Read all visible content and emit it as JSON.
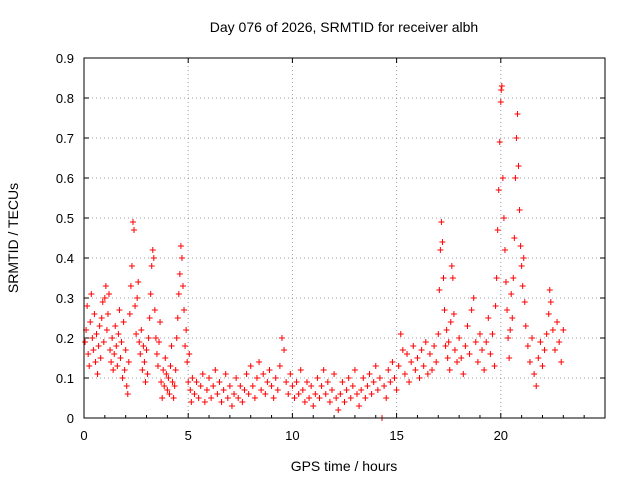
{
  "chart_data": {
    "type": "scatter",
    "title": "Day 076 of 2026, SRMTID for receiver albh",
    "xlabel": "GPS time / hours",
    "ylabel": "SRMTID / TECUs",
    "xlim": [
      0,
      25
    ],
    "ylim": [
      0,
      0.9
    ],
    "xticks": [
      0,
      5,
      10,
      15,
      20
    ],
    "yticks": [
      0,
      0.1,
      0.2,
      0.3,
      0.4,
      0.5,
      0.6,
      0.7,
      0.8,
      0.9
    ],
    "xtick_labels": [
      "0",
      "5",
      "10",
      "15",
      "20"
    ],
    "ytick_labels": [
      "0",
      "0.1",
      "0.2",
      "0.3",
      "0.4",
      "0.5",
      "0.6",
      "0.7",
      "0.8",
      "0.9"
    ],
    "grid": true,
    "marker": "+",
    "color": "#ff0000",
    "series": [
      {
        "name": "SRMTID",
        "points": [
          [
            0.05,
            0.19
          ],
          [
            0.1,
            0.22
          ],
          [
            0.15,
            0.28
          ],
          [
            0.2,
            0.16
          ],
          [
            0.25,
            0.13
          ],
          [
            0.3,
            0.24
          ],
          [
            0.35,
            0.31
          ],
          [
            0.4,
            0.2
          ],
          [
            0.45,
            0.17
          ],
          [
            0.5,
            0.26
          ],
          [
            0.55,
            0.14
          ],
          [
            0.6,
            0.21
          ],
          [
            0.65,
            0.11
          ],
          [
            0.7,
            0.18
          ],
          [
            0.75,
            0.23
          ],
          [
            0.8,
            0.15
          ],
          [
            0.85,
            0.25
          ],
          [
            0.9,
            0.29
          ],
          [
            0.95,
            0.19
          ],
          [
            1.0,
            0.3
          ],
          [
            1.05,
            0.33
          ],
          [
            1.1,
            0.22
          ],
          [
            1.15,
            0.26
          ],
          [
            1.2,
            0.31
          ],
          [
            1.25,
            0.17
          ],
          [
            1.3,
            0.14
          ],
          [
            1.35,
            0.2
          ],
          [
            1.4,
            0.12
          ],
          [
            1.45,
            0.16
          ],
          [
            1.5,
            0.23
          ],
          [
            1.55,
            0.18
          ],
          [
            1.6,
            0.13
          ],
          [
            1.65,
            0.21
          ],
          [
            1.7,
            0.27
          ],
          [
            1.75,
            0.15
          ],
          [
            1.8,
            0.19
          ],
          [
            1.85,
            0.1
          ],
          [
            1.9,
            0.24
          ],
          [
            1.95,
            0.12
          ],
          [
            2.0,
            0.17
          ],
          [
            2.05,
            0.08
          ],
          [
            2.1,
            0.06
          ],
          [
            2.15,
            0.14
          ],
          [
            2.2,
            0.26
          ],
          [
            2.25,
            0.33
          ],
          [
            2.3,
            0.38
          ],
          [
            2.35,
            0.49
          ],
          [
            2.4,
            0.47
          ],
          [
            2.45,
            0.28
          ],
          [
            2.5,
            0.21
          ],
          [
            2.55,
            0.3
          ],
          [
            2.6,
            0.34
          ],
          [
            2.65,
            0.19
          ],
          [
            2.7,
            0.16
          ],
          [
            2.75,
            0.22
          ],
          [
            2.8,
            0.12
          ],
          [
            2.85,
            0.18
          ],
          [
            2.9,
            0.14
          ],
          [
            2.95,
            0.09
          ],
          [
            3.0,
            0.17
          ],
          [
            3.05,
            0.11
          ],
          [
            3.1,
            0.2
          ],
          [
            3.15,
            0.25
          ],
          [
            3.2,
            0.31
          ],
          [
            3.25,
            0.38
          ],
          [
            3.3,
            0.42
          ],
          [
            3.35,
            0.4
          ],
          [
            3.4,
            0.27
          ],
          [
            3.45,
            0.2
          ],
          [
            3.5,
            0.16
          ],
          [
            3.55,
            0.13
          ],
          [
            3.6,
            0.19
          ],
          [
            3.65,
            0.24
          ],
          [
            3.7,
            0.09
          ],
          [
            3.75,
            0.05
          ],
          [
            3.8,
            0.12
          ],
          [
            3.85,
            0.08
          ],
          [
            3.9,
            0.15
          ],
          [
            3.95,
            0.11
          ],
          [
            4.0,
            0.07
          ],
          [
            4.05,
            0.1
          ],
          [
            4.1,
            0.06
          ],
          [
            4.15,
            0.13
          ],
          [
            4.2,
            0.18
          ],
          [
            4.25,
            0.09
          ],
          [
            4.3,
            0.05
          ],
          [
            4.35,
            0.08
          ],
          [
            4.4,
            0.12
          ],
          [
            4.45,
            0.2
          ],
          [
            4.5,
            0.25
          ],
          [
            4.55,
            0.31
          ],
          [
            4.6,
            0.36
          ],
          [
            4.65,
            0.43
          ],
          [
            4.7,
            0.4
          ],
          [
            4.75,
            0.33
          ],
          [
            4.8,
            0.27
          ],
          [
            4.85,
            0.18
          ],
          [
            4.9,
            0.22
          ],
          [
            4.95,
            0.14
          ],
          [
            5.0,
            0.09
          ],
          [
            5.05,
            0.16
          ],
          [
            5.1,
            0.07
          ],
          [
            5.15,
            0.04
          ],
          [
            5.2,
            0.1
          ],
          [
            5.3,
            0.06
          ],
          [
            5.4,
            0.09
          ],
          [
            5.5,
            0.05
          ],
          [
            5.6,
            0.08
          ],
          [
            5.7,
            0.11
          ],
          [
            5.8,
            0.04
          ],
          [
            5.9,
            0.07
          ],
          [
            6.0,
            0.1
          ],
          [
            6.1,
            0.05
          ],
          [
            6.2,
            0.08
          ],
          [
            6.3,
            0.12
          ],
          [
            6.4,
            0.06
          ],
          [
            6.5,
            0.09
          ],
          [
            6.6,
            0.04
          ],
          [
            6.7,
            0.07
          ],
          [
            6.8,
            0.11
          ],
          [
            6.9,
            0.05
          ],
          [
            7.0,
            0.08
          ],
          [
            7.1,
            0.03
          ],
          [
            7.2,
            0.06
          ],
          [
            7.3,
            0.1
          ],
          [
            7.4,
            0.05
          ],
          [
            7.5,
            0.08
          ],
          [
            7.6,
            0.04
          ],
          [
            7.7,
            0.07
          ],
          [
            7.8,
            0.11
          ],
          [
            7.9,
            0.06
          ],
          [
            8.0,
            0.13
          ],
          [
            8.1,
            0.08
          ],
          [
            8.2,
            0.05
          ],
          [
            8.3,
            0.1
          ],
          [
            8.4,
            0.14
          ],
          [
            8.5,
            0.07
          ],
          [
            8.6,
            0.11
          ],
          [
            8.7,
            0.06
          ],
          [
            8.8,
            0.09
          ],
          [
            8.9,
            0.12
          ],
          [
            9.0,
            0.08
          ],
          [
            9.1,
            0.05
          ],
          [
            9.2,
            0.1
          ],
          [
            9.3,
            0.07
          ],
          [
            9.4,
            0.13
          ],
          [
            9.5,
            0.2
          ],
          [
            9.6,
            0.17
          ],
          [
            9.7,
            0.09
          ],
          [
            9.8,
            0.06
          ],
          [
            9.9,
            0.11
          ],
          [
            10.0,
            0.08
          ],
          [
            10.1,
            0.05
          ],
          [
            10.2,
            0.09
          ],
          [
            10.3,
            0.06
          ],
          [
            10.4,
            0.12
          ],
          [
            10.5,
            0.07
          ],
          [
            10.6,
            0.04
          ],
          [
            10.7,
            0.09
          ],
          [
            10.8,
            0.05
          ],
          [
            10.9,
            0.08
          ],
          [
            11.0,
            0.03
          ],
          [
            11.1,
            0.06
          ],
          [
            11.2,
            0.1
          ],
          [
            11.3,
            0.05
          ],
          [
            11.4,
            0.08
          ],
          [
            11.5,
            0.12
          ],
          [
            11.6,
            0.06
          ],
          [
            11.7,
            0.09
          ],
          [
            11.8,
            0.04
          ],
          [
            11.9,
            0.07
          ],
          [
            12.0,
            0.11
          ],
          [
            12.1,
            0.05
          ],
          [
            12.2,
            0.02
          ],
          [
            12.3,
            0.06
          ],
          [
            12.4,
            0.09
          ],
          [
            12.5,
            0.04
          ],
          [
            12.6,
            0.07
          ],
          [
            12.7,
            0.1
          ],
          [
            12.8,
            0.05
          ],
          [
            12.9,
            0.08
          ],
          [
            13.0,
            0.12
          ],
          [
            13.1,
            0.06
          ],
          [
            13.2,
            0.03
          ],
          [
            13.3,
            0.07
          ],
          [
            13.4,
            0.1
          ],
          [
            13.5,
            0.05
          ],
          [
            13.6,
            0.08
          ],
          [
            13.7,
            0.11
          ],
          [
            13.8,
            0.06
          ],
          [
            13.9,
            0.09
          ],
          [
            14.0,
            0.13
          ],
          [
            14.1,
            0.07
          ],
          [
            14.2,
            0.1
          ],
          [
            14.3,
            0.0
          ],
          [
            14.4,
            0.08
          ],
          [
            14.5,
            0.05
          ],
          [
            14.6,
            0.12
          ],
          [
            14.7,
            0.09
          ],
          [
            14.8,
            0.14
          ],
          [
            14.9,
            0.1
          ],
          [
            15.0,
            0.07
          ],
          [
            15.1,
            0.13
          ],
          [
            15.2,
            0.21
          ],
          [
            15.3,
            0.17
          ],
          [
            15.4,
            0.11
          ],
          [
            15.5,
            0.16
          ],
          [
            15.6,
            0.09
          ],
          [
            15.7,
            0.14
          ],
          [
            15.8,
            0.18
          ],
          [
            15.9,
            0.12
          ],
          [
            16.0,
            0.15
          ],
          [
            16.1,
            0.1
          ],
          [
            16.2,
            0.17
          ],
          [
            16.3,
            0.13
          ],
          [
            16.4,
            0.19
          ],
          [
            16.5,
            0.11
          ],
          [
            16.6,
            0.16
          ],
          [
            16.7,
            0.12
          ],
          [
            16.8,
            0.18
          ],
          [
            16.9,
            0.14
          ],
          [
            17.0,
            0.21
          ],
          [
            17.05,
            0.32
          ],
          [
            17.1,
            0.42
          ],
          [
            17.15,
            0.49
          ],
          [
            17.2,
            0.44
          ],
          [
            17.25,
            0.35
          ],
          [
            17.3,
            0.27
          ],
          [
            17.35,
            0.18
          ],
          [
            17.4,
            0.22
          ],
          [
            17.45,
            0.15
          ],
          [
            17.5,
            0.19
          ],
          [
            17.55,
            0.12
          ],
          [
            17.6,
            0.24
          ],
          [
            17.65,
            0.38
          ],
          [
            17.7,
            0.35
          ],
          [
            17.75,
            0.26
          ],
          [
            17.8,
            0.17
          ],
          [
            17.9,
            0.14
          ],
          [
            18.0,
            0.2
          ],
          [
            18.1,
            0.15
          ],
          [
            18.2,
            0.11
          ],
          [
            18.3,
            0.18
          ],
          [
            18.4,
            0.23
          ],
          [
            18.5,
            0.16
          ],
          [
            18.6,
            0.27
          ],
          [
            18.7,
            0.3
          ],
          [
            18.8,
            0.19
          ],
          [
            18.9,
            0.14
          ],
          [
            19.0,
            0.21
          ],
          [
            19.1,
            0.17
          ],
          [
            19.2,
            0.12
          ],
          [
            19.3,
            0.19
          ],
          [
            19.4,
            0.25
          ],
          [
            19.5,
            0.16
          ],
          [
            19.6,
            0.21
          ],
          [
            19.7,
            0.13
          ],
          [
            19.75,
            0.28
          ],
          [
            19.8,
            0.35
          ],
          [
            19.85,
            0.47
          ],
          [
            19.9,
            0.57
          ],
          [
            19.95,
            0.69
          ],
          [
            20.0,
            0.79
          ],
          [
            20.02,
            0.82
          ],
          [
            20.05,
            0.83
          ],
          [
            20.1,
            0.6
          ],
          [
            20.15,
            0.5
          ],
          [
            20.2,
            0.42
          ],
          [
            20.25,
            0.34
          ],
          [
            20.3,
            0.27
          ],
          [
            20.35,
            0.2
          ],
          [
            20.4,
            0.15
          ],
          [
            20.45,
            0.22
          ],
          [
            20.5,
            0.31
          ],
          [
            20.55,
            0.25
          ],
          [
            20.6,
            0.35
          ],
          [
            20.65,
            0.45
          ],
          [
            20.7,
            0.6
          ],
          [
            20.75,
            0.7
          ],
          [
            20.8,
            0.76
          ],
          [
            20.85,
            0.63
          ],
          [
            20.9,
            0.52
          ],
          [
            20.95,
            0.43
          ],
          [
            21.0,
            0.38
          ],
          [
            21.05,
            0.33
          ],
          [
            21.1,
            0.4
          ],
          [
            21.15,
            0.29
          ],
          [
            21.2,
            0.23
          ],
          [
            21.3,
            0.18
          ],
          [
            21.4,
            0.14
          ],
          [
            21.5,
            0.2
          ],
          [
            21.6,
            0.11
          ],
          [
            21.7,
            0.08
          ],
          [
            21.8,
            0.15
          ],
          [
            21.9,
            0.19
          ],
          [
            22.0,
            0.13
          ],
          [
            22.1,
            0.17
          ],
          [
            22.2,
            0.21
          ],
          [
            22.3,
            0.26
          ],
          [
            22.35,
            0.32
          ],
          [
            22.4,
            0.29
          ],
          [
            22.5,
            0.22
          ],
          [
            22.6,
            0.17
          ],
          [
            22.7,
            0.24
          ],
          [
            22.8,
            0.19
          ],
          [
            22.9,
            0.14
          ],
          [
            23.0,
            0.22
          ]
        ]
      }
    ]
  }
}
